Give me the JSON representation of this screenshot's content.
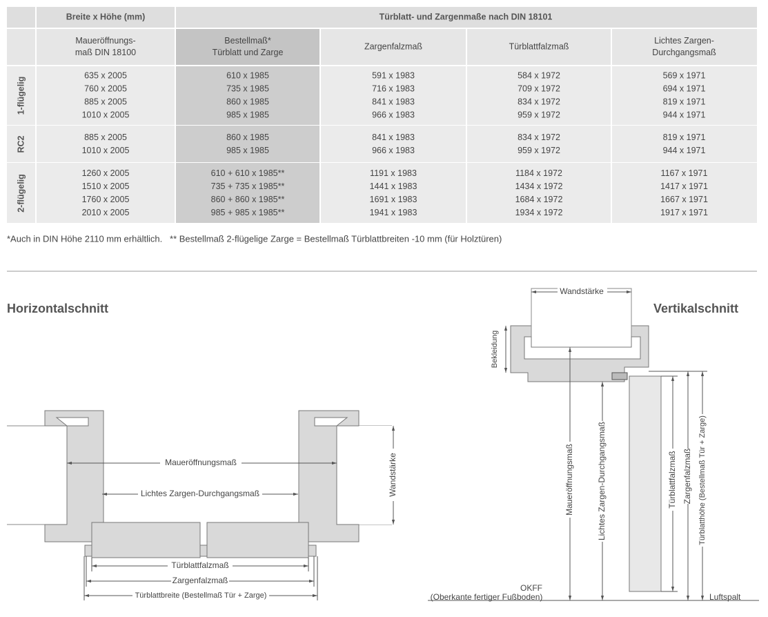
{
  "table": {
    "group_headers": [
      "Breite x Höhe (mm)",
      "Türblatt- und Zargenmaße nach DIN 18101"
    ],
    "column_headers": [
      [
        "Maueröffnungs-",
        "maß DIN 18100"
      ],
      [
        "Bestellmaß*",
        "Türblatt und Zarge"
      ],
      [
        "Zargenfalzmaß"
      ],
      [
        "Türblattfalzmaß"
      ],
      [
        "Lichtes Zargen-",
        "Durchgangsmaß"
      ]
    ],
    "groups": [
      {
        "label": "1-flügelig",
        "rows": [
          [
            "635 x 2005",
            "610 x 1985",
            "591 x 1983",
            "584 x 1972",
            "569 x 1971"
          ],
          [
            "760 x 2005",
            "735 x 1985",
            "716 x 1983",
            "709 x 1972",
            "694 x 1971"
          ],
          [
            "885 x 2005",
            "860 x 1985",
            "841 x 1983",
            "834 x 1972",
            "819 x 1971"
          ],
          [
            "1010 x 2005",
            "985 x 1985",
            "966 x 1983",
            "959 x 1972",
            "944 x 1971"
          ]
        ]
      },
      {
        "label": "RC2",
        "rows": [
          [
            "885 x 2005",
            "860 x 1985",
            "841 x 1983",
            "834 x 1972",
            "819 x 1971"
          ],
          [
            "1010 x 2005",
            "985 x 1985",
            "966 x 1983",
            "959 x 1972",
            "944 x 1971"
          ]
        ]
      },
      {
        "label": "2-flügelig",
        "rows": [
          [
            "1260 x 2005",
            "610 + 610 x 1985**",
            "1191 x 1983",
            "1184 x 1972",
            "1167 x 1971"
          ],
          [
            "1510 x 2005",
            "735 + 735 x 1985**",
            "1441 x 1983",
            "1434 x 1972",
            "1417 x 1971"
          ],
          [
            "1760 x 2005",
            "860 + 860 x 1985**",
            "1691 x 1983",
            "1684 x 1972",
            "1667 x 1971"
          ],
          [
            "2010 x 2005",
            "985 + 985 x 1985**",
            "1941 x 1983",
            "1934 x 1972",
            "1917 x 1971"
          ]
        ]
      }
    ]
  },
  "footnote": "*Auch in DIN Höhe 2110 mm erhältlich.   ** Bestellmaß 2-flügelige Zarge = Bestellmaß Türblattbreiten -10 mm (für Holztüren)",
  "horizontal_section": {
    "title": "Horizontalschnitt",
    "labels": {
      "opening": "Maueröffnungsmaß",
      "clear": "Lichtes Zargen-Durchgangsmaß",
      "wall": "Wandstärke",
      "leaf_rebate": "Türblattfalzmaß",
      "frame_rebate": "Zargenfalzmaß",
      "leaf_width": "Türblattbreite (Bestellmaß Tür + Zarge)"
    }
  },
  "vertical_section": {
    "title": "Vertikalschnitt",
    "labels": {
      "wall": "Wandstärke",
      "casing": "Bekleidung",
      "opening": "Maueröffnungsmaß",
      "clear": "Lichtes Zargen-Durchgangsmaß",
      "leaf_rebate": "Türblattfalzmaß",
      "frame_rebate": "Zargenfalzmaß",
      "leaf_height": "Türblatthöhe (Bestellmaß Tür + Zarge)",
      "floor": "OKFF",
      "floor_desc": "(Oberkante fertiger Fußboden)",
      "gap": "Luftspalt"
    }
  }
}
